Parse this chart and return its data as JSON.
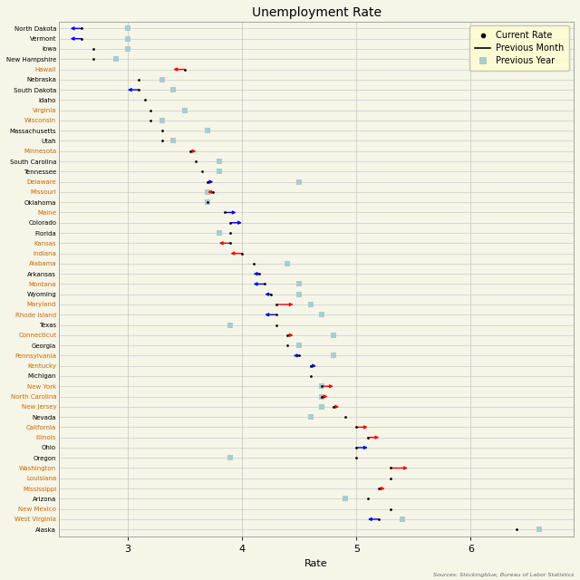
{
  "title": "Unemployment Rate",
  "xlabel": "Rate",
  "source": "Sources: Stockingblue, Bureau of Labor Statistics",
  "xlim": [
    2.4,
    6.9
  ],
  "xticks": [
    3,
    4,
    5,
    6
  ],
  "states": [
    "North Dakota",
    "Vermont",
    "Iowa",
    "New Hampshire",
    "Hawaii",
    "Nebraska",
    "South Dakota",
    "Idaho",
    "Virginia",
    "Wisconsin",
    "Massachusetts",
    "Utah",
    "Minnesota",
    "South Carolina",
    "Tennessee",
    "Delaware",
    "Missouri",
    "Oklahoma",
    "Maine",
    "Colorado",
    "Florida",
    "Kansas",
    "Indiana",
    "Alabama",
    "Arkansas",
    "Montana",
    "Wyoming",
    "Maryland",
    "Rhode Island",
    "Texas",
    "Connecticut",
    "Georgia",
    "Pennsylvania",
    "Kentucky",
    "Michigan",
    "New York",
    "North Carolina",
    "New Jersey",
    "Nevada",
    "California",
    "Illinois",
    "Ohio",
    "Oregon",
    "Washington",
    "Louisiana",
    "Mississippi",
    "Arizona",
    "New Mexico",
    "West Virginia",
    "Alaska"
  ],
  "label_colors": [
    "black",
    "black",
    "black",
    "black",
    "#cc6600",
    "black",
    "black",
    "black",
    "#cc6600",
    "#cc6600",
    "black",
    "black",
    "#cc6600",
    "black",
    "black",
    "#cc6600",
    "#cc6600",
    "black",
    "#cc6600",
    "black",
    "black",
    "#cc6600",
    "#cc6600",
    "#cc6600",
    "black",
    "#cc6600",
    "black",
    "#cc6600",
    "#cc6600",
    "black",
    "#cc6600",
    "black",
    "#cc6600",
    "#cc6600",
    "black",
    "#cc6600",
    "#cc6600",
    "#cc6600",
    "black",
    "#cc6600",
    "#cc6600",
    "black",
    "black",
    "#cc6600",
    "#cc6600",
    "#cc6600",
    "black",
    "#cc6600",
    "#cc6600",
    "black"
  ],
  "current": [
    2.6,
    2.6,
    2.7,
    2.7,
    3.5,
    3.1,
    3.1,
    3.15,
    3.2,
    3.2,
    3.3,
    3.3,
    3.55,
    3.6,
    3.65,
    3.7,
    3.75,
    3.7,
    3.85,
    3.9,
    3.9,
    3.9,
    4.0,
    4.1,
    4.15,
    4.2,
    4.25,
    4.3,
    4.3,
    4.3,
    4.4,
    4.4,
    4.5,
    4.6,
    4.6,
    4.7,
    4.7,
    4.8,
    4.9,
    5.0,
    5.1,
    5.0,
    5.0,
    5.3,
    5.3,
    5.2,
    5.1,
    5.3,
    5.2,
    6.4
  ],
  "prev_month_start": [
    2.6,
    2.6,
    null,
    null,
    3.5,
    3.1,
    3.1,
    null,
    null,
    null,
    null,
    null,
    3.55,
    null,
    null,
    3.7,
    3.75,
    null,
    3.85,
    3.9,
    null,
    3.9,
    4.0,
    null,
    4.15,
    4.2,
    4.25,
    4.3,
    4.3,
    null,
    4.4,
    null,
    4.5,
    4.6,
    null,
    4.7,
    4.7,
    4.8,
    4.9,
    5.0,
    5.1,
    5.0,
    null,
    5.3,
    5.3,
    5.2,
    null,
    null,
    5.2,
    null
  ],
  "prev_month_end": [
    2.5,
    2.5,
    null,
    null,
    3.4,
    3.1,
    3.0,
    null,
    null,
    null,
    null,
    null,
    3.6,
    null,
    null,
    3.75,
    3.7,
    null,
    3.95,
    4.0,
    null,
    3.8,
    3.9,
    null,
    4.1,
    4.1,
    4.2,
    4.45,
    4.2,
    null,
    4.45,
    null,
    4.45,
    4.65,
    null,
    4.8,
    4.75,
    4.85,
    4.9,
    5.1,
    5.2,
    5.1,
    null,
    5.45,
    5.3,
    5.25,
    null,
    null,
    5.1,
    null
  ],
  "prev_month_color": [
    "blue",
    "blue",
    null,
    null,
    "red",
    "black",
    "blue",
    null,
    null,
    null,
    null,
    null,
    "red",
    null,
    null,
    "blue",
    "red",
    null,
    "blue",
    "blue",
    null,
    "red",
    "red",
    null,
    "blue",
    "blue",
    "blue",
    "red",
    "blue",
    null,
    "red",
    null,
    "blue",
    "blue",
    null,
    "red",
    "red",
    "red",
    "black",
    "red",
    "red",
    "blue",
    null,
    "red",
    "blue",
    "red",
    null,
    null,
    "blue",
    null
  ],
  "prev_year": [
    3.0,
    3.0,
    3.0,
    2.9,
    null,
    3.3,
    3.4,
    null,
    3.5,
    3.3,
    3.7,
    3.4,
    null,
    3.8,
    3.8,
    4.5,
    3.7,
    3.7,
    null,
    null,
    3.8,
    null,
    null,
    4.4,
    null,
    4.5,
    4.5,
    4.6,
    4.7,
    3.9,
    4.8,
    4.5,
    4.8,
    null,
    null,
    4.7,
    4.7,
    4.7,
    4.6,
    null,
    null,
    null,
    3.9,
    null,
    null,
    null,
    4.9,
    null,
    5.4,
    6.6
  ],
  "prev_year_color": "#aacccc",
  "background_color": "#f5f5e8",
  "grid_color": "#cccccc",
  "legend_bg": "#ffffd0"
}
